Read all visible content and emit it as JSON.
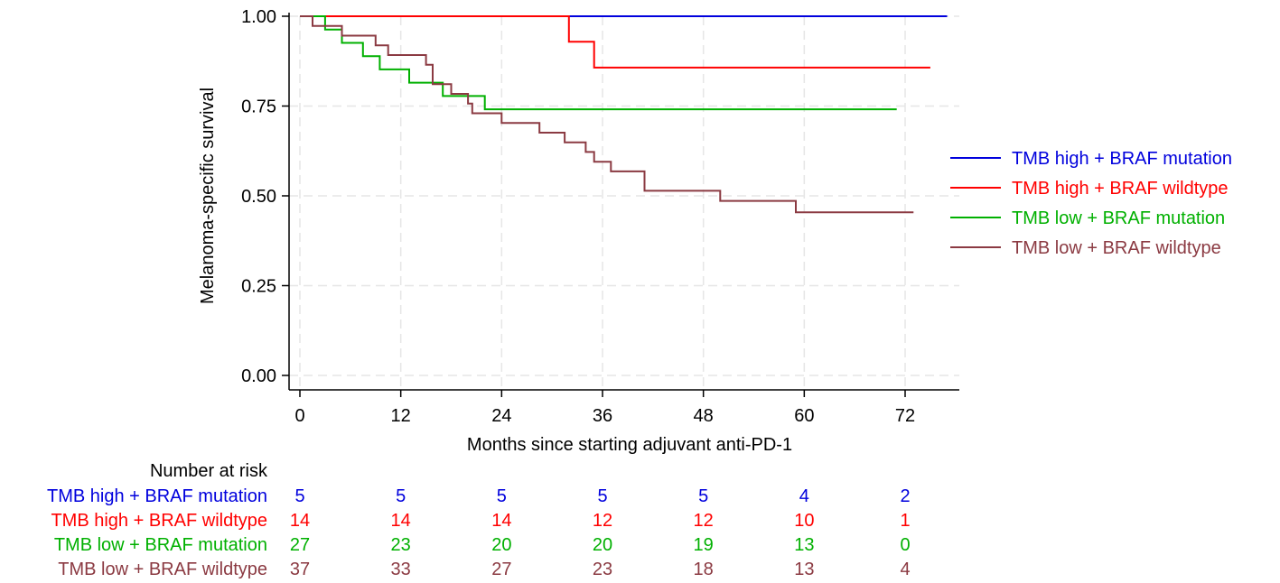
{
  "chart_data": {
    "type": "line",
    "step": true,
    "xlabel": "Months since starting adjuvant anti-PD-1",
    "ylabel": "Melanoma-specific survival",
    "xlim": [
      0,
      76
    ],
    "ylim": [
      0,
      1
    ],
    "x_ticks": [
      "0",
      "12",
      "24",
      "36",
      "48",
      "60",
      "72"
    ],
    "y_ticks": [
      "0.00",
      "0.25",
      "0.50",
      "0.75",
      "1.00"
    ],
    "grid": true,
    "legend_position": "right",
    "series": [
      {
        "name": "TMB high + BRAF mutation",
        "color": "#0000dd",
        "points": [
          [
            0,
            1.0
          ],
          [
            77,
            1.0
          ]
        ]
      },
      {
        "name": "TMB high + BRAF wildtype",
        "color": "#ff0000",
        "points": [
          [
            0,
            1.0
          ],
          [
            32,
            1.0
          ],
          [
            32,
            0.929
          ],
          [
            35,
            0.929
          ],
          [
            35,
            0.857
          ],
          [
            75,
            0.857
          ]
        ]
      },
      {
        "name": "TMB low + BRAF mutation",
        "color": "#00b000",
        "points": [
          [
            0,
            1.0
          ],
          [
            3,
            1.0
          ],
          [
            3,
            0.963
          ],
          [
            5,
            0.963
          ],
          [
            5,
            0.926
          ],
          [
            7.5,
            0.926
          ],
          [
            7.5,
            0.889
          ],
          [
            9.5,
            0.889
          ],
          [
            9.5,
            0.852
          ],
          [
            13,
            0.852
          ],
          [
            13,
            0.815
          ],
          [
            17,
            0.815
          ],
          [
            17,
            0.778
          ],
          [
            22,
            0.778
          ],
          [
            22,
            0.741
          ],
          [
            71,
            0.741
          ]
        ]
      },
      {
        "name": "TMB low + BRAF wildtype",
        "color": "#8b3a42",
        "points": [
          [
            0,
            1.0
          ],
          [
            1.5,
            1.0
          ],
          [
            1.5,
            0.973
          ],
          [
            5,
            0.973
          ],
          [
            5,
            0.946
          ],
          [
            9,
            0.946
          ],
          [
            9,
            0.919
          ],
          [
            10.5,
            0.919
          ],
          [
            10.5,
            0.892
          ],
          [
            15,
            0.892
          ],
          [
            15,
            0.865
          ],
          [
            15.8,
            0.865
          ],
          [
            15.8,
            0.811
          ],
          [
            18,
            0.811
          ],
          [
            18,
            0.784
          ],
          [
            20,
            0.784
          ],
          [
            20,
            0.757
          ],
          [
            20.5,
            0.757
          ],
          [
            20.5,
            0.73
          ],
          [
            24,
            0.73
          ],
          [
            24,
            0.703
          ],
          [
            28.5,
            0.703
          ],
          [
            28.5,
            0.676
          ],
          [
            31.5,
            0.676
          ],
          [
            31.5,
            0.649
          ],
          [
            34,
            0.649
          ],
          [
            34,
            0.622
          ],
          [
            35,
            0.622
          ],
          [
            35,
            0.595
          ],
          [
            37,
            0.595
          ],
          [
            37,
            0.568
          ],
          [
            41,
            0.568
          ],
          [
            41,
            0.514
          ],
          [
            50,
            0.514
          ],
          [
            50,
            0.486
          ],
          [
            59,
            0.486
          ],
          [
            59,
            0.454
          ],
          [
            73,
            0.454
          ]
        ]
      }
    ],
    "risk_table": {
      "title": "Number at risk",
      "timepoints": [
        0,
        12,
        24,
        36,
        48,
        60,
        72
      ],
      "rows": [
        {
          "label": "TMB high + BRAF mutation",
          "color": "#0000dd",
          "values": [
            "5",
            "5",
            "5",
            "5",
            "5",
            "4",
            "2"
          ]
        },
        {
          "label": "TMB high + BRAF wildtype",
          "color": "#ff0000",
          "values": [
            "14",
            "14",
            "14",
            "12",
            "12",
            "10",
            "1"
          ]
        },
        {
          "label": "TMB low + BRAF mutation",
          "color": "#00b000",
          "values": [
            "27",
            "23",
            "20",
            "20",
            "19",
            "13",
            "0"
          ]
        },
        {
          "label": "TMB low + BRAF wildtype",
          "color": "#8b3a42",
          "values": [
            "37",
            "33",
            "27",
            "23",
            "18",
            "13",
            "4"
          ]
        }
      ]
    }
  }
}
